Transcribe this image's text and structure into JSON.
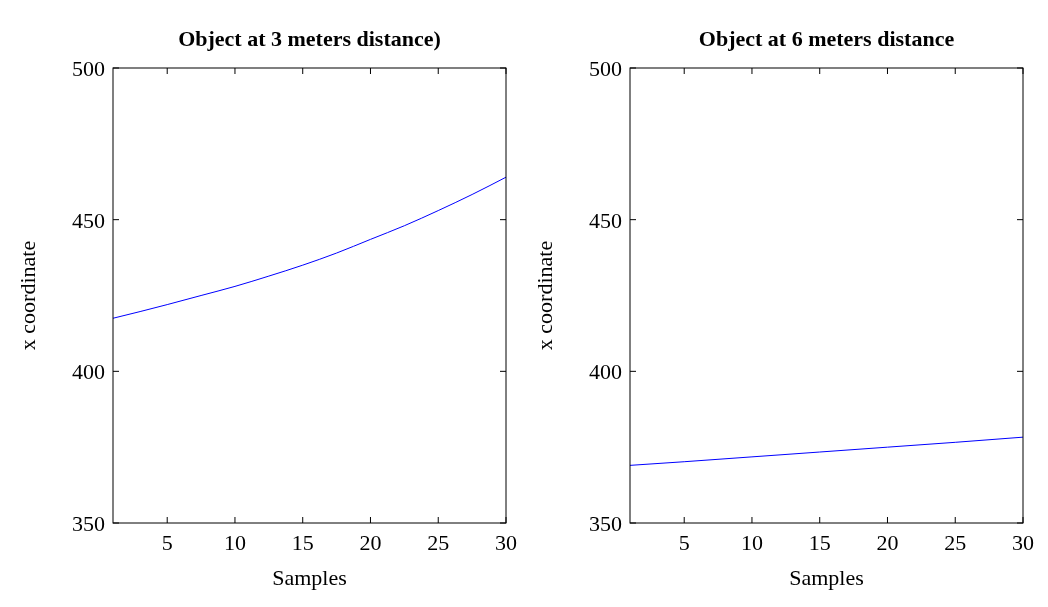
{
  "chart_data": [
    {
      "type": "line",
      "title": "Object at 3 meters distance)",
      "xlabel": "Samples",
      "ylabel": "x coordinate",
      "x": [
        1,
        3,
        5,
        7.5,
        10,
        12.5,
        15,
        17.5,
        20,
        22.5,
        25,
        27.5,
        30
      ],
      "series": [
        {
          "color": "#0000ff",
          "values": [
            417.5,
            419.7,
            422,
            425,
            428,
            431.4,
            435,
            439,
            443.5,
            448,
            453,
            458.3,
            464
          ]
        }
      ],
      "xlim": [
        1,
        30
      ],
      "xticks": [
        5,
        10,
        15,
        20,
        25,
        30
      ],
      "ylim": [
        350,
        500
      ],
      "yticks": [
        350,
        400,
        450,
        500
      ]
    },
    {
      "type": "line",
      "title": "Object at 6 meters distance",
      "xlabel": "Samples",
      "ylabel": "x coordinate",
      "x": [
        1,
        5,
        10,
        15,
        20,
        25,
        30
      ],
      "series": [
        {
          "color": "#0000ff",
          "values": [
            369,
            370.2,
            371.8,
            373.4,
            375,
            376.6,
            378.3
          ]
        }
      ],
      "xlim": [
        1,
        30
      ],
      "xticks": [
        5,
        10,
        15,
        20,
        25,
        30
      ],
      "ylim": [
        350,
        500
      ],
      "yticks": [
        350,
        400,
        450,
        500
      ]
    }
  ]
}
